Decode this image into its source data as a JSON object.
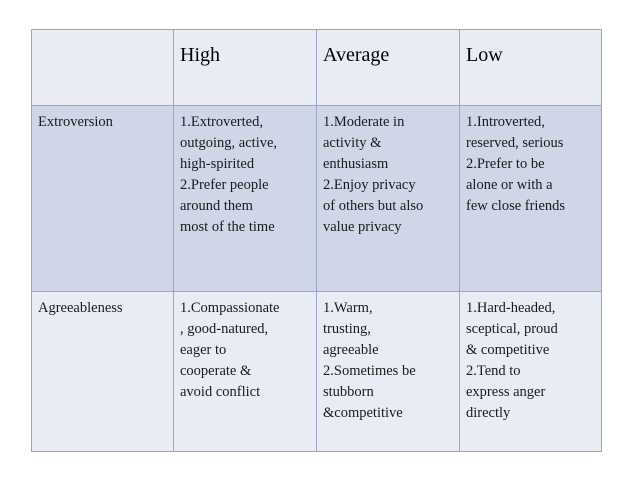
{
  "table": {
    "headers": [
      "",
      "High",
      "Average",
      "Low"
    ],
    "rows": [
      {
        "trait": "Extroversion",
        "high": "1.Extroverted,\noutgoing, active,\nhigh-spirited\n2.Prefer people\naround them\nmost of the time",
        "average": "1.Moderate in\nactivity &\nenthusiasm\n2.Enjoy privacy\nof others but also\nvalue privacy",
        "low": "1.Introverted,\nreserved, serious\n2.Prefer to be\nalone or with a\nfew close friends"
      },
      {
        "trait": "Agreeableness",
        "high": "1.Compassionate\n, good-natured,\neager to\ncooperate &\navoid conflict",
        "average": "1.Warm,\ntrusting,\nagreeable\n2.Sometimes be\nstubborn\n&competitive",
        "low": "1.Hard-headed,\nsceptical, proud\n& competitive\n2.Tend to\nexpress anger\ndirectly"
      }
    ]
  },
  "colors": {
    "header_bg": "#e9ecf5",
    "row_dark_bg": "#cfd6e7",
    "row_light_bg": "#e9ecf5",
    "border": "#9aa7c2"
  }
}
